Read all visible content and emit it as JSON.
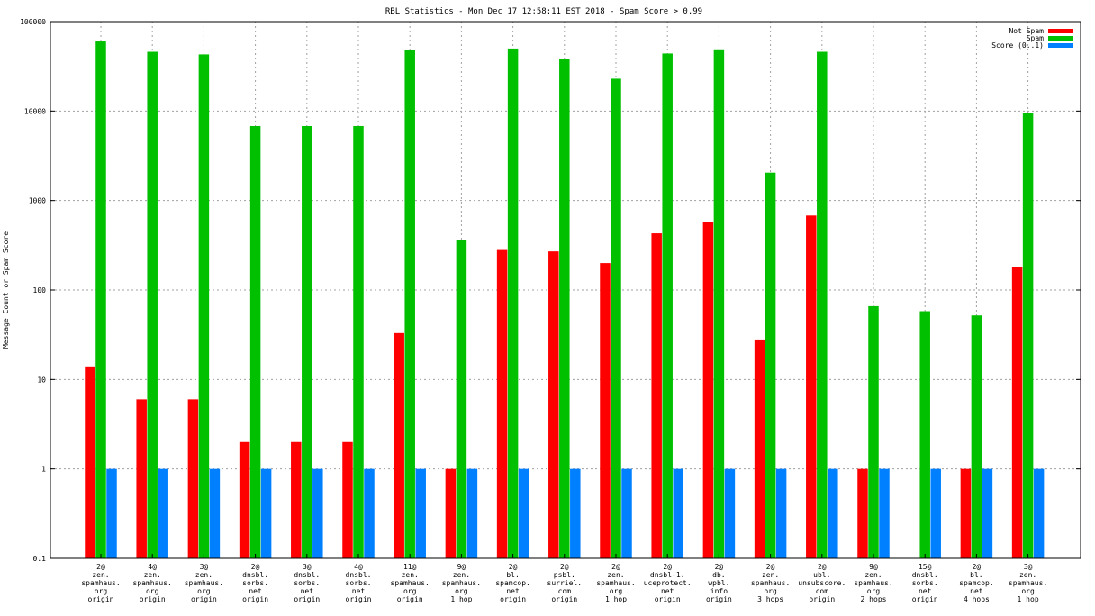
{
  "chart_data": {
    "type": "bar",
    "title": "RBL Statistics - Mon Dec 17 12:58:11 EST 2018 - Spam Score > 0.99",
    "ylabel": "Message Count or Spam Score",
    "xlabel": "",
    "yscale": "log",
    "ylim": [
      0.1,
      100000
    ],
    "yticks": [
      "0.1",
      "1",
      "10",
      "100",
      "1000",
      "10000",
      "100000"
    ],
    "grid": true,
    "legend_position": "top-right",
    "categories": [
      [
        "2@",
        "zen.",
        "spamhaus.",
        "org",
        "origin"
      ],
      [
        "4@",
        "zen.",
        "spamhaus.",
        "org",
        "origin"
      ],
      [
        "3@",
        "zen.",
        "spamhaus.",
        "org",
        "origin"
      ],
      [
        "2@",
        "dnsbl.",
        "sorbs.",
        "net",
        "origin"
      ],
      [
        "3@",
        "dnsbl.",
        "sorbs.",
        "net",
        "origin"
      ],
      [
        "4@",
        "dnsbl.",
        "sorbs.",
        "net",
        "origin"
      ],
      [
        "11@",
        "zen.",
        "spamhaus.",
        "org",
        "origin"
      ],
      [
        "9@",
        "zen.",
        "spamhaus.",
        "org",
        "1 hop"
      ],
      [
        "2@",
        "bl.",
        "spamcop.",
        "net",
        "origin"
      ],
      [
        "2@",
        "psbl.",
        "surriel.",
        "com",
        "origin"
      ],
      [
        "2@",
        "zen.",
        "spamhaus.",
        "org",
        "1 hop"
      ],
      [
        "2@",
        "dnsbl-1.",
        "uceprotect.",
        "net",
        "origin"
      ],
      [
        "2@",
        "db.",
        "wpbl.",
        "info",
        "origin"
      ],
      [
        "2@",
        "zen.",
        "spamhaus.",
        "org",
        "3 hops"
      ],
      [
        "2@",
        "ubl.",
        "unsubscore.",
        "com",
        "origin"
      ],
      [
        "9@",
        "zen.",
        "spamhaus.",
        "org",
        "2 hops"
      ],
      [
        "15@",
        "dnsbl.",
        "sorbs.",
        "net",
        "origin"
      ],
      [
        "2@",
        "bl.",
        "spamcop.",
        "net",
        "4 hops"
      ],
      [
        "3@",
        "zen.",
        "spamhaus.",
        "org",
        "1 hop"
      ]
    ],
    "series": [
      {
        "name": "Not Spam",
        "color": "#ff0000",
        "values": [
          14,
          6,
          6,
          2,
          2,
          2,
          33,
          1,
          280,
          270,
          200,
          430,
          580,
          28,
          680,
          1,
          null,
          1,
          180
        ]
      },
      {
        "name": "Spam",
        "color": "#00c000",
        "values": [
          60000,
          46000,
          43000,
          6800,
          6800,
          6800,
          48000,
          360,
          50000,
          38000,
          23000,
          44000,
          49000,
          2050,
          46000,
          66,
          58,
          52,
          9500
        ]
      },
      {
        "name": "Score (0..1)",
        "color": "#0080ff",
        "values": [
          1,
          1,
          1,
          1,
          1,
          1,
          1,
          1,
          1,
          1,
          1,
          1,
          1,
          1,
          1,
          1,
          1,
          1,
          1
        ]
      }
    ]
  }
}
